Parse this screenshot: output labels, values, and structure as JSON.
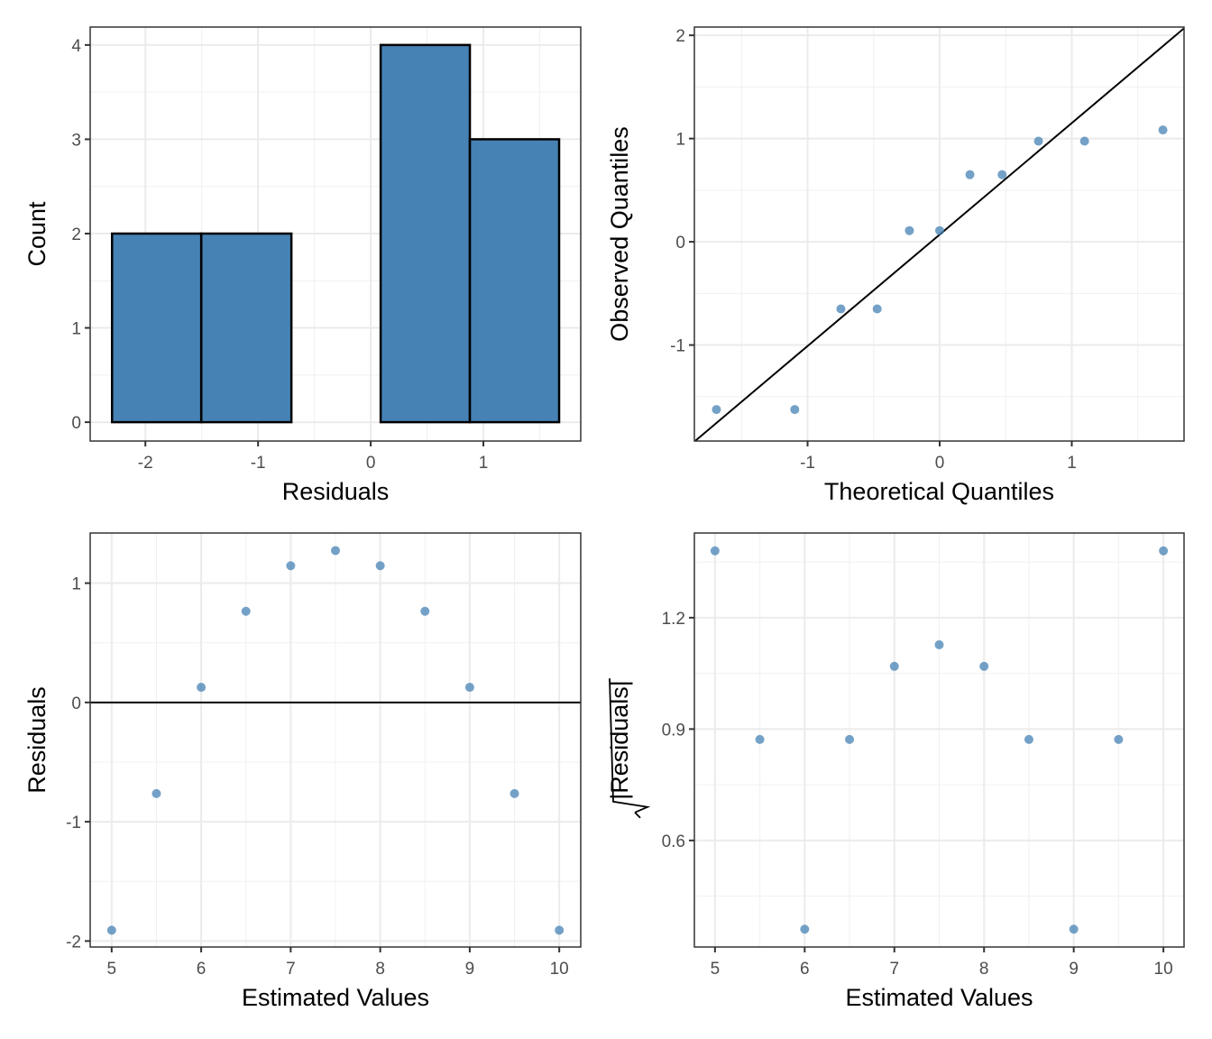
{
  "chart_data": [
    {
      "type": "bar",
      "subtype": "histogram",
      "xlabel": "Residuals",
      "ylabel": "Count",
      "bin_edges": [
        -2.296,
        -1.504,
        -0.704,
        0.088,
        0.88,
        1.672
      ],
      "values": [
        2,
        2,
        0,
        4,
        3
      ],
      "xlim": [
        -2.49,
        1.864
      ],
      "ylim": [
        -0.2,
        4.19
      ],
      "xticks": [
        -2,
        -1,
        0,
        1
      ],
      "yticks": [
        0,
        1,
        2,
        3,
        4
      ],
      "fill": "#4682B4",
      "grid": true
    },
    {
      "type": "scatter",
      "subtype": "qq",
      "xlabel": "Theoretical Quantiles",
      "ylabel": "Observed Quantiles",
      "x": [
        -1.69,
        -1.097,
        -0.748,
        -0.473,
        -0.229,
        0,
        0.229,
        0.473,
        0.748,
        1.097,
        1.69
      ],
      "y": [
        -1.625,
        -1.625,
        -0.65,
        -0.65,
        0.108,
        0.108,
        0.65,
        0.65,
        0.975,
        0.975,
        1.083
      ],
      "reference_line": {
        "intercept": 0.07,
        "slope": 1.08
      },
      "xlim": [
        -1.857,
        1.85
      ],
      "ylim": [
        -1.93,
        2.08
      ],
      "xticks": [
        -1,
        0,
        1
      ],
      "yticks": [
        -1,
        0,
        1,
        2
      ],
      "point_color": "#4682B4",
      "grid": true
    },
    {
      "type": "scatter",
      "xlabel": "Estimated Values",
      "ylabel": "Residuals",
      "x": [
        5,
        5.5,
        6,
        6.5,
        7,
        7.5,
        8,
        8.5,
        9,
        9.5,
        10
      ],
      "y": [
        -1.909,
        -0.764,
        0.127,
        0.764,
        1.146,
        1.273,
        1.146,
        0.764,
        0.127,
        -0.764,
        -1.909
      ],
      "hline": 0,
      "xlim": [
        4.76,
        10.24
      ],
      "ylim": [
        -2.05,
        1.42
      ],
      "xticks": [
        5,
        6,
        7,
        8,
        9,
        10
      ],
      "yticks": [
        -2,
        -1,
        0,
        1
      ],
      "point_color": "#4682B4",
      "grid": true
    },
    {
      "type": "scatter",
      "xlabel": "Estimated Values",
      "ylabel": "|Residuals|",
      "ylabel_sqrt": true,
      "x": [
        5,
        5.5,
        6,
        6.5,
        7,
        7.5,
        8,
        8.5,
        9,
        9.5,
        10
      ],
      "y": [
        1.38,
        0.872,
        0.361,
        0.872,
        1.069,
        1.127,
        1.069,
        0.872,
        0.361,
        0.872,
        1.38
      ],
      "xlim": [
        4.77,
        10.23
      ],
      "ylim": [
        0.313,
        1.428
      ],
      "xticks": [
        5,
        6,
        7,
        8,
        9,
        10
      ],
      "yticks": [
        0.6,
        0.9,
        1.2
      ],
      "point_color": "#4682B4",
      "grid": true
    }
  ]
}
